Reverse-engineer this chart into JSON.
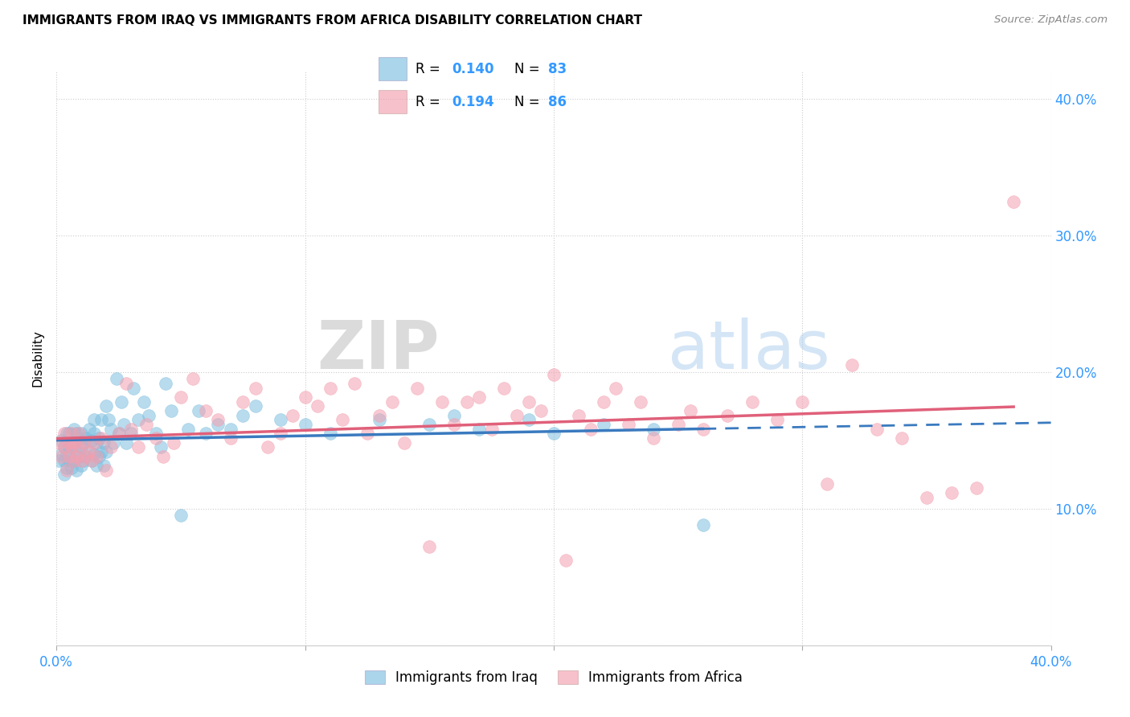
{
  "title": "IMMIGRANTS FROM IRAQ VS IMMIGRANTS FROM AFRICA DISABILITY CORRELATION CHART",
  "source": "Source: ZipAtlas.com",
  "ylabel": "Disability",
  "r_iraq": 0.14,
  "n_iraq": 83,
  "r_africa": 0.194,
  "n_africa": 86,
  "iraq_color": "#7fbfdf",
  "africa_color": "#f4a0b0",
  "iraq_line_color": "#3a7abf",
  "africa_line_color": "#e0607a",
  "watermark_zip": "ZIP",
  "watermark_atlas": "atlas",
  "xlim": [
    0.0,
    0.4
  ],
  "ylim": [
    0.0,
    0.42
  ],
  "legend_color": "#3399ff",
  "iraq_x": [
    0.001,
    0.002,
    0.002,
    0.003,
    0.003,
    0.003,
    0.004,
    0.004,
    0.004,
    0.005,
    0.005,
    0.005,
    0.006,
    0.006,
    0.007,
    0.007,
    0.007,
    0.008,
    0.008,
    0.008,
    0.009,
    0.009,
    0.01,
    0.01,
    0.01,
    0.011,
    0.011,
    0.012,
    0.012,
    0.013,
    0.013,
    0.014,
    0.014,
    0.015,
    0.015,
    0.015,
    0.016,
    0.016,
    0.017,
    0.017,
    0.018,
    0.018,
    0.019,
    0.019,
    0.02,
    0.02,
    0.021,
    0.022,
    0.023,
    0.024,
    0.025,
    0.026,
    0.027,
    0.028,
    0.03,
    0.031,
    0.033,
    0.035,
    0.037,
    0.04,
    0.042,
    0.044,
    0.046,
    0.05,
    0.053,
    0.057,
    0.06,
    0.065,
    0.07,
    0.075,
    0.08,
    0.09,
    0.1,
    0.11,
    0.13,
    0.15,
    0.16,
    0.17,
    0.19,
    0.2,
    0.22,
    0.24,
    0.26
  ],
  "iraq_y": [
    0.135,
    0.14,
    0.15,
    0.125,
    0.135,
    0.145,
    0.13,
    0.14,
    0.155,
    0.135,
    0.145,
    0.155,
    0.13,
    0.145,
    0.135,
    0.148,
    0.158,
    0.128,
    0.142,
    0.155,
    0.138,
    0.152,
    0.132,
    0.145,
    0.155,
    0.135,
    0.148,
    0.138,
    0.152,
    0.142,
    0.158,
    0.135,
    0.15,
    0.14,
    0.155,
    0.165,
    0.132,
    0.148,
    0.138,
    0.152,
    0.142,
    0.165,
    0.132,
    0.148,
    0.142,
    0.175,
    0.165,
    0.158,
    0.148,
    0.195,
    0.155,
    0.178,
    0.162,
    0.148,
    0.155,
    0.188,
    0.165,
    0.178,
    0.168,
    0.155,
    0.145,
    0.192,
    0.172,
    0.095,
    0.158,
    0.172,
    0.155,
    0.162,
    0.158,
    0.168,
    0.175,
    0.165,
    0.162,
    0.155,
    0.165,
    0.162,
    0.168,
    0.158,
    0.165,
    0.155,
    0.162,
    0.158,
    0.088
  ],
  "africa_x": [
    0.001,
    0.002,
    0.003,
    0.003,
    0.004,
    0.005,
    0.005,
    0.006,
    0.006,
    0.007,
    0.007,
    0.008,
    0.009,
    0.009,
    0.01,
    0.011,
    0.012,
    0.013,
    0.014,
    0.015,
    0.016,
    0.018,
    0.02,
    0.022,
    0.025,
    0.028,
    0.03,
    0.033,
    0.036,
    0.04,
    0.043,
    0.047,
    0.05,
    0.055,
    0.06,
    0.065,
    0.07,
    0.075,
    0.08,
    0.085,
    0.09,
    0.095,
    0.1,
    0.105,
    0.11,
    0.115,
    0.12,
    0.125,
    0.13,
    0.135,
    0.14,
    0.145,
    0.15,
    0.155,
    0.16,
    0.165,
    0.17,
    0.175,
    0.18,
    0.185,
    0.19,
    0.195,
    0.2,
    0.205,
    0.21,
    0.215,
    0.22,
    0.225,
    0.23,
    0.235,
    0.24,
    0.25,
    0.255,
    0.26,
    0.27,
    0.28,
    0.29,
    0.3,
    0.31,
    0.32,
    0.33,
    0.34,
    0.35,
    0.36,
    0.37,
    0.385
  ],
  "africa_y": [
    0.148,
    0.138,
    0.145,
    0.155,
    0.128,
    0.148,
    0.138,
    0.145,
    0.155,
    0.135,
    0.148,
    0.138,
    0.145,
    0.155,
    0.135,
    0.148,
    0.138,
    0.142,
    0.135,
    0.148,
    0.138,
    0.152,
    0.128,
    0.145,
    0.155,
    0.192,
    0.158,
    0.145,
    0.162,
    0.152,
    0.138,
    0.148,
    0.182,
    0.195,
    0.172,
    0.165,
    0.152,
    0.178,
    0.188,
    0.145,
    0.155,
    0.168,
    0.182,
    0.175,
    0.188,
    0.165,
    0.192,
    0.155,
    0.168,
    0.178,
    0.148,
    0.188,
    0.072,
    0.178,
    0.162,
    0.178,
    0.182,
    0.158,
    0.188,
    0.168,
    0.178,
    0.172,
    0.198,
    0.062,
    0.168,
    0.158,
    0.178,
    0.188,
    0.162,
    0.178,
    0.152,
    0.162,
    0.172,
    0.158,
    0.168,
    0.178,
    0.165,
    0.178,
    0.118,
    0.205,
    0.158,
    0.152,
    0.108,
    0.112,
    0.115,
    0.325
  ]
}
